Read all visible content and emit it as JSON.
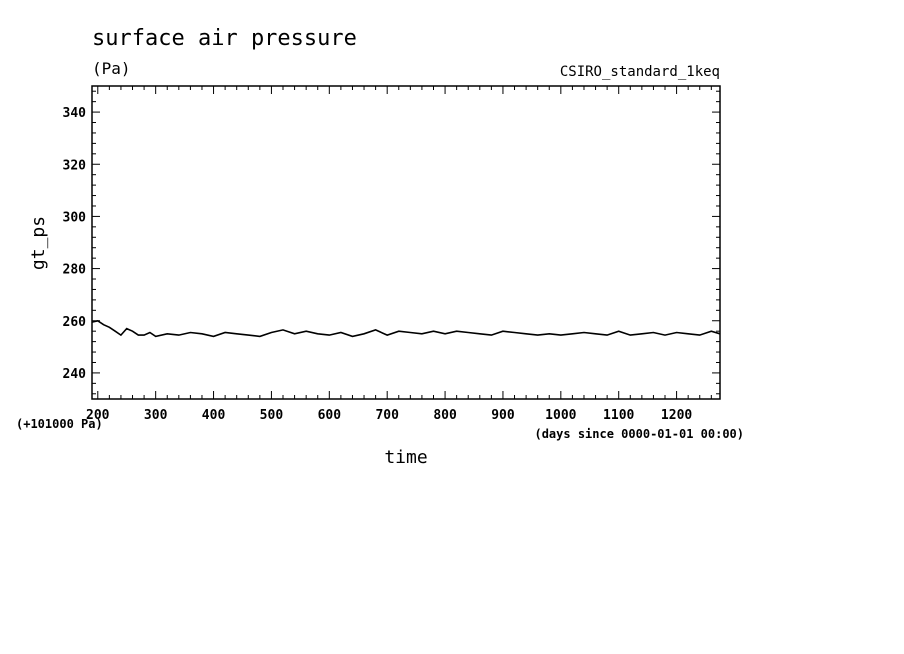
{
  "chart_data": {
    "type": "line",
    "title": "surface air pressure",
    "units": "(Pa)",
    "run_name": "CSIRO_standard_1keq",
    "xlabel": "time",
    "ylabel": "gt_ps",
    "x_units": "(days since 0000-01-01 00:00)",
    "y_offset": "(+101000 Pa)",
    "xlim": [
      190,
      1275
    ],
    "ylim": [
      230,
      350
    ],
    "x_ticks": [
      200,
      300,
      400,
      500,
      600,
      700,
      800,
      900,
      1000,
      1100,
      1200
    ],
    "y_ticks": [
      240,
      260,
      280,
      300,
      320,
      340
    ],
    "series": [
      {
        "name": "gt_ps",
        "x": [
          190,
          200,
          210,
          220,
          230,
          240,
          250,
          260,
          270,
          280,
          290,
          300,
          320,
          340,
          360,
          380,
          400,
          420,
          440,
          460,
          480,
          500,
          520,
          540,
          560,
          580,
          600,
          620,
          640,
          660,
          680,
          700,
          720,
          740,
          760,
          780,
          800,
          820,
          840,
          860,
          880,
          900,
          920,
          940,
          960,
          980,
          1000,
          1020,
          1040,
          1060,
          1080,
          1100,
          1120,
          1140,
          1160,
          1180,
          1200,
          1220,
          1240,
          1260,
          1275
        ],
        "values": [
          259.5,
          260,
          258.5,
          257.5,
          256,
          254.5,
          257,
          256,
          254.5,
          254.5,
          255.5,
          254,
          255,
          254.5,
          255.5,
          255,
          254,
          255.5,
          255,
          254.5,
          254,
          255.5,
          256.5,
          255,
          256,
          255,
          254.5,
          255.5,
          254,
          255,
          256.5,
          254.5,
          256,
          255.5,
          255,
          256,
          255,
          256,
          255.5,
          255,
          254.5,
          256,
          255.5,
          255,
          254.5,
          255,
          254.5,
          255,
          255.5,
          255,
          254.5,
          256,
          254.5,
          255,
          255.5,
          254.5,
          255.5,
          255,
          254.5,
          256,
          255
        ]
      }
    ]
  }
}
